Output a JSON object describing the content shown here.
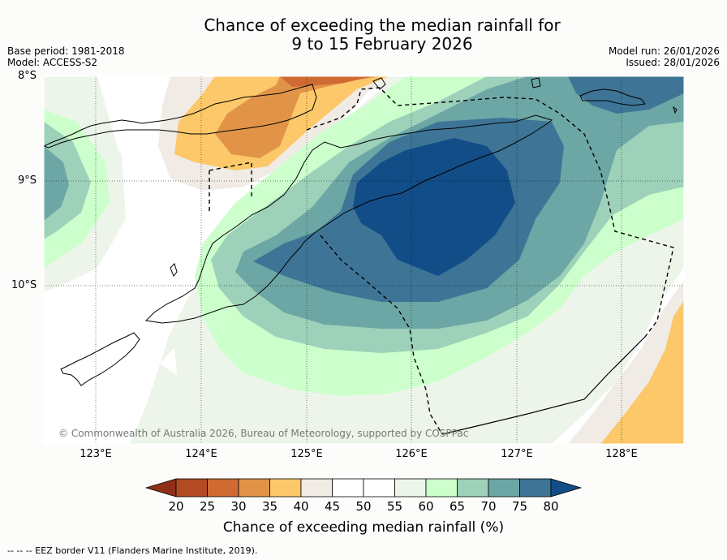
{
  "title": {
    "line1": "Chance of exceeding the median rainfall for",
    "line2": "9 to 15 February 2026"
  },
  "meta_left": {
    "base_period": "Base period: 1981-2018",
    "model": "Model: ACCESS-S2"
  },
  "meta_right": {
    "model_run": "Model run: 26/01/2026",
    "issued": "Issued: 28/01/2026"
  },
  "map": {
    "lat_labels": [
      "8°S",
      "9°S",
      "10°S"
    ],
    "lon_labels": [
      "123°E",
      "124°E",
      "125°E",
      "126°E",
      "127°E",
      "128°E"
    ],
    "copyright": "© Commonwealth of Australia 2026, Bureau of Meteorology, supported by COSPPac"
  },
  "colorbar": {
    "ticks": [
      "20",
      "25",
      "30",
      "35",
      "40",
      "45",
      "50",
      "55",
      "60",
      "65",
      "70",
      "75",
      "80"
    ],
    "colors": {
      "lt20": "#8f2f18",
      "b20": "#b24a24",
      "b25": "#cf6a33",
      "b30": "#e19448",
      "b35": "#fcc86a",
      "b40": "#f1ebe6",
      "b45": "#ffffff",
      "b50": "#ffffff",
      "b55": "#edf5ea",
      "b60": "#ccffcc",
      "b65": "#9dd1b9",
      "b70": "#6ca7a6",
      "b75": "#3e7596",
      "gt80": "#124d88"
    },
    "label": "Chance of exceeding median rainfall (%)"
  },
  "footer": {
    "eez_note": "--  --  -- EEZ border V11 (Flanders Marine Institute, 2019)."
  }
}
